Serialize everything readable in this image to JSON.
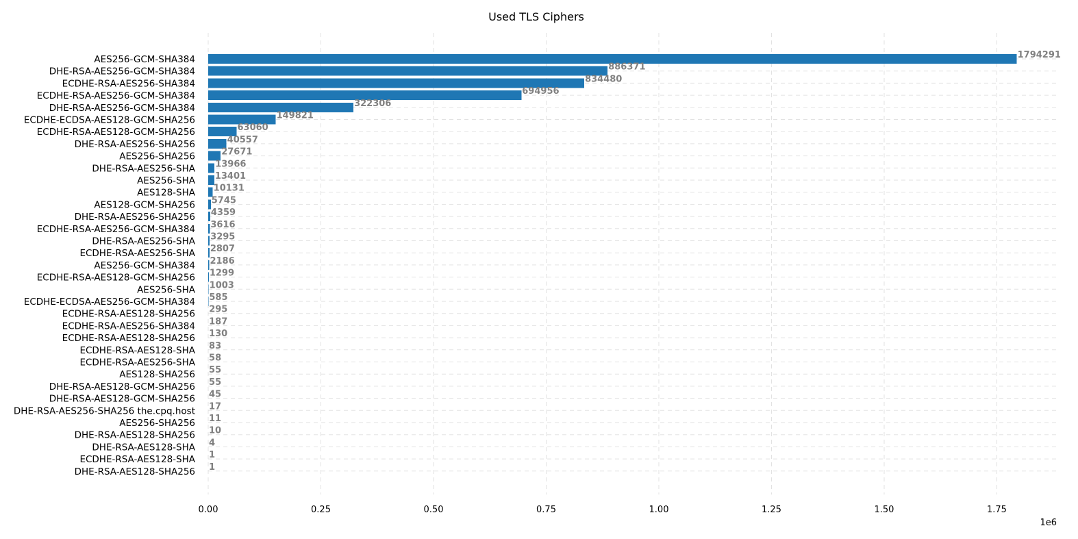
{
  "chart_data": {
    "type": "bar",
    "orientation": "horizontal",
    "title": "Used TLS Ciphers",
    "xlabel": "",
    "ylabel": "",
    "bar_color": "#1f77b4",
    "label_color": "#808080",
    "grid": true,
    "xlim": [
      0,
      1883000
    ],
    "x_ticks": [
      0,
      250000,
      500000,
      750000,
      1000000,
      1250000,
      1500000,
      1750000
    ],
    "x_tick_labels": [
      "0.00",
      "0.25",
      "0.50",
      "0.75",
      "1.00",
      "1.25",
      "1.50",
      "1.75"
    ],
    "x_offset_label": "1e6",
    "categories": [
      "AES256-GCM-SHA384",
      "DHE-RSA-AES256-GCM-SHA384",
      "ECDHE-RSA-AES256-SHA384",
      "ECDHE-RSA-AES256-GCM-SHA384",
      "DHE-RSA-AES256-GCM-SHA384",
      "ECDHE-ECDSA-AES128-GCM-SHA256",
      "ECDHE-RSA-AES128-GCM-SHA256",
      "DHE-RSA-AES256-SHA256",
      "AES256-SHA256",
      "DHE-RSA-AES256-SHA",
      "AES256-SHA",
      "AES128-SHA",
      "AES128-GCM-SHA256",
      "DHE-RSA-AES256-SHA256",
      "ECDHE-RSA-AES256-GCM-SHA384",
      "DHE-RSA-AES256-SHA",
      "ECDHE-RSA-AES256-SHA",
      "AES256-GCM-SHA384",
      "ECDHE-RSA-AES128-GCM-SHA256",
      "AES256-SHA",
      "ECDHE-ECDSA-AES256-GCM-SHA384",
      "ECDHE-RSA-AES128-SHA256",
      "ECDHE-RSA-AES256-SHA384",
      "ECDHE-RSA-AES128-SHA256",
      "ECDHE-RSA-AES128-SHA",
      "ECDHE-RSA-AES256-SHA",
      "AES128-SHA256",
      "DHE-RSA-AES128-GCM-SHA256",
      "DHE-RSA-AES128-GCM-SHA256",
      "DHE-RSA-AES256-SHA256 the.cpq.host",
      "AES256-SHA256",
      "DHE-RSA-AES128-SHA256",
      "DHE-RSA-AES128-SHA",
      "ECDHE-RSA-AES128-SHA",
      "DHE-RSA-AES128-SHA256"
    ],
    "values": [
      1794291,
      886371,
      834480,
      694956,
      322306,
      149821,
      63060,
      40557,
      27671,
      13966,
      13401,
      10131,
      5745,
      4359,
      3616,
      3295,
      2807,
      2186,
      1299,
      1003,
      585,
      295,
      187,
      130,
      83,
      58,
      55,
      55,
      45,
      17,
      11,
      10,
      4,
      1,
      1
    ]
  }
}
